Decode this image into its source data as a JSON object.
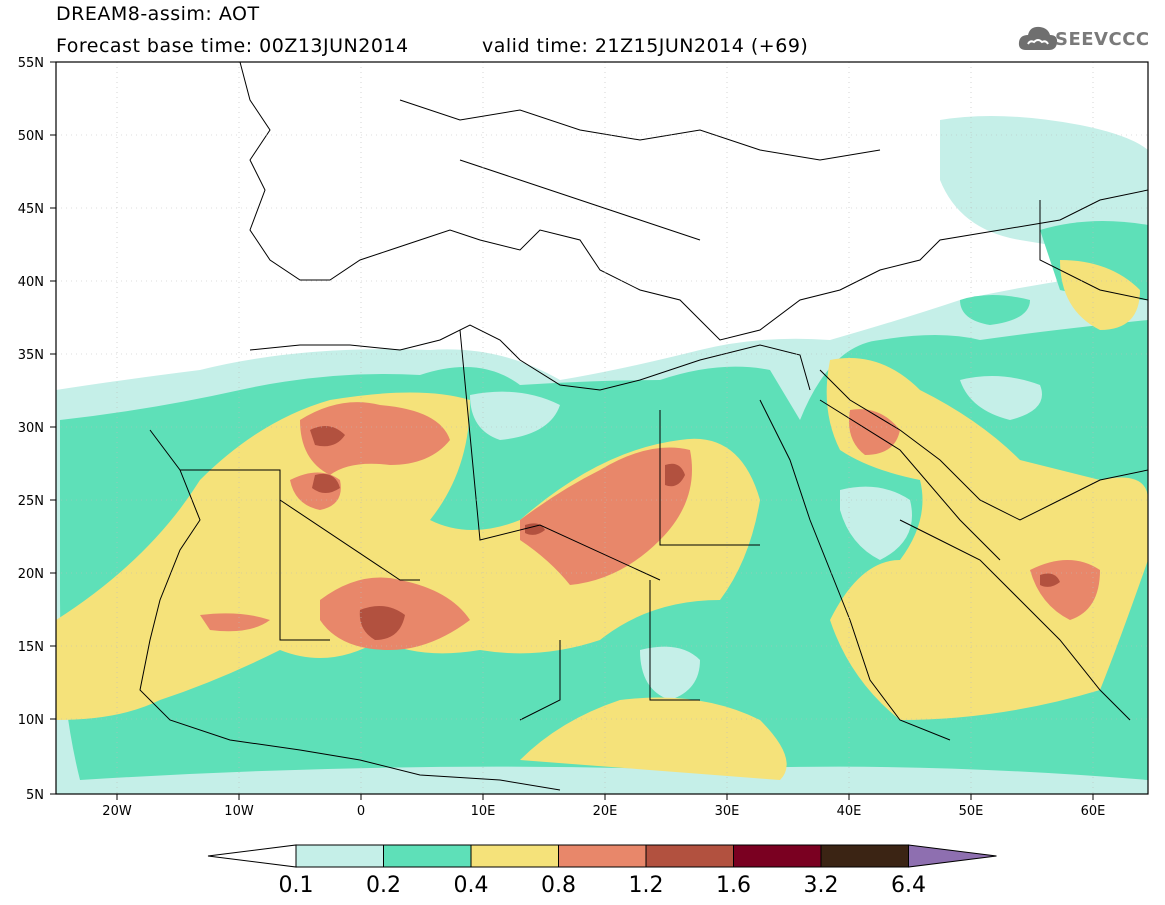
{
  "header": {
    "model_line": "DREAM8-assim: AOT",
    "base_time": "Forecast base time: 00Z13JUN2014",
    "valid_time": "valid time: 21Z15JUN2014 (+69)"
  },
  "logo": {
    "text": "SEEVCCC",
    "icon": "cloud-icon"
  },
  "axes": {
    "lat_labels": [
      "55N",
      "50N",
      "45N",
      "40N",
      "35N",
      "30N",
      "25N",
      "20N",
      "15N",
      "10N",
      "5N"
    ],
    "lon_labels": [
      "20W",
      "10W",
      "0",
      "10E",
      "20E",
      "30E",
      "40E",
      "50E",
      "60E"
    ]
  },
  "colorbar": {
    "labels": [
      "0.1",
      "0.2",
      "0.4",
      "0.8",
      "1.2",
      "1.6",
      "3.2",
      "6.4"
    ],
    "colors": [
      "#ffffff",
      "#c5efe8",
      "#5ee0b8",
      "#f5e27a",
      "#e8876a",
      "#b2513f",
      "#7a0021",
      "#3b2414",
      "#8e6fb0"
    ]
  },
  "map_colors": {
    "c1": "#c5efe8",
    "c2": "#5ee0b8",
    "c3": "#f5e27a",
    "c4": "#e8876a",
    "c5": "#b2513f",
    "land": "#ffffff",
    "border": "#000000"
  }
}
